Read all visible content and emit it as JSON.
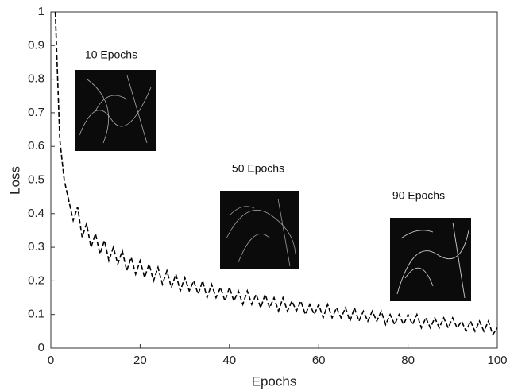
{
  "chart_data": {
    "type": "line",
    "xlabel": "Epochs",
    "ylabel": "Loss",
    "x": [
      1,
      2,
      3,
      4,
      5,
      6,
      7,
      8,
      9,
      10,
      11,
      12,
      13,
      14,
      15,
      16,
      17,
      18,
      19,
      20,
      21,
      22,
      23,
      24,
      25,
      26,
      27,
      28,
      29,
      30,
      31,
      32,
      33,
      34,
      35,
      36,
      37,
      38,
      39,
      40,
      41,
      42,
      43,
      44,
      45,
      46,
      47,
      48,
      49,
      50,
      51,
      52,
      53,
      54,
      55,
      56,
      57,
      58,
      59,
      60,
      61,
      62,
      63,
      64,
      65,
      66,
      67,
      68,
      69,
      70,
      71,
      72,
      73,
      74,
      75,
      76,
      77,
      78,
      79,
      80,
      81,
      82,
      83,
      84,
      85,
      86,
      87,
      88,
      89,
      90,
      91,
      92,
      93,
      94,
      95,
      96,
      97,
      98,
      99,
      100
    ],
    "series": [
      {
        "name": "Loss",
        "color": "#000000",
        "values": [
          1.0,
          0.62,
          0.5,
          0.44,
          0.38,
          0.42,
          0.33,
          0.37,
          0.3,
          0.34,
          0.28,
          0.32,
          0.26,
          0.3,
          0.25,
          0.29,
          0.23,
          0.27,
          0.22,
          0.26,
          0.21,
          0.25,
          0.2,
          0.24,
          0.19,
          0.23,
          0.18,
          0.22,
          0.17,
          0.21,
          0.17,
          0.2,
          0.16,
          0.2,
          0.15,
          0.19,
          0.15,
          0.18,
          0.14,
          0.18,
          0.14,
          0.17,
          0.13,
          0.17,
          0.13,
          0.16,
          0.12,
          0.16,
          0.12,
          0.15,
          0.11,
          0.15,
          0.11,
          0.14,
          0.11,
          0.14,
          0.1,
          0.13,
          0.1,
          0.13,
          0.09,
          0.13,
          0.09,
          0.12,
          0.09,
          0.12,
          0.08,
          0.12,
          0.08,
          0.11,
          0.08,
          0.11,
          0.08,
          0.11,
          0.07,
          0.1,
          0.07,
          0.1,
          0.07,
          0.1,
          0.07,
          0.1,
          0.06,
          0.09,
          0.06,
          0.09,
          0.06,
          0.09,
          0.06,
          0.09,
          0.06,
          0.08,
          0.05,
          0.08,
          0.05,
          0.08,
          0.05,
          0.08,
          0.04,
          0.06
        ]
      }
    ],
    "xlim": [
      0,
      100
    ],
    "xticks": [
      0,
      20,
      40,
      60,
      80,
      100
    ],
    "ylim": [
      0,
      1
    ],
    "yticks": [
      0,
      0.1,
      0.2,
      0.3,
      0.4,
      0.5,
      0.6,
      0.7,
      0.8,
      0.9,
      1
    ],
    "annotations": [
      "10 Epochs",
      "50 Epochs",
      "90 Epochs"
    ]
  }
}
